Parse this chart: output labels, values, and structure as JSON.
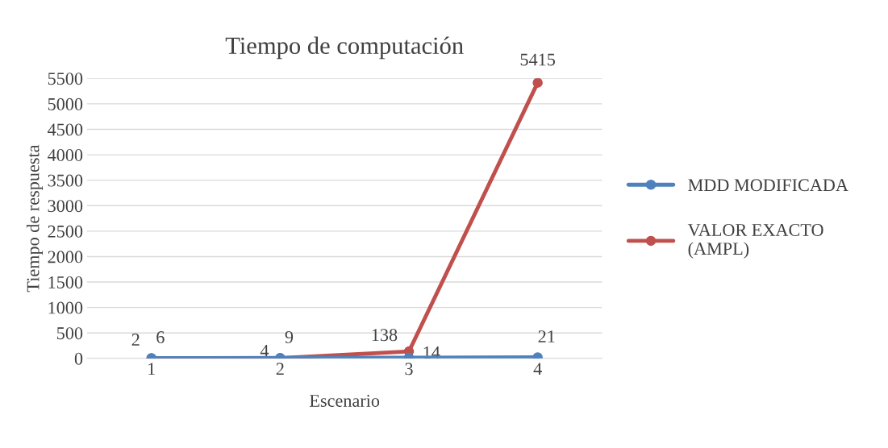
{
  "chart_data": {
    "type": "line",
    "title": "Tiempo de computación",
    "xlabel": "Escenario",
    "ylabel": "Tiempo de respuesta",
    "categories": [
      "1",
      "2",
      "3",
      "4"
    ],
    "series": [
      {
        "name": "MDD MODIFICADA",
        "color": "#4f81bd",
        "values": [
          6,
          9,
          14,
          21
        ]
      },
      {
        "name": "VALOR EXACTO (AMPL)",
        "color": "#c0504d",
        "values": [
          2,
          4,
          138,
          5415
        ]
      }
    ],
    "ylim": [
      0,
      5500
    ],
    "yticks": [
      0,
      500,
      1000,
      1500,
      2000,
      2500,
      3000,
      3500,
      4000,
      4500,
      5000,
      5500
    ],
    "grid": "y",
    "legend": "right",
    "marker": "circle",
    "line_style": "solid",
    "data_labels": true
  }
}
